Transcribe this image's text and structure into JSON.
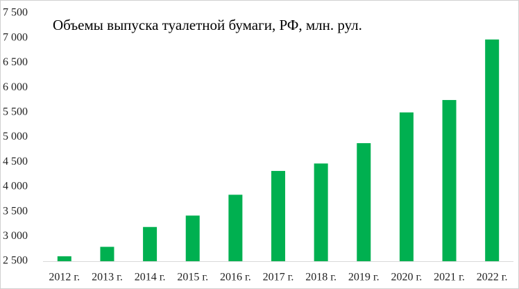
{
  "chart_data": {
    "type": "bar",
    "title": "Объемы выпуска туалетной бумаги, РФ, млн. рул.",
    "categories": [
      "2012 г.",
      "2013 г.",
      "2014 г.",
      "2015 г.",
      "2016 г.",
      "2017 г.",
      "2018 г.",
      "2019 г.",
      "2020 г.",
      "2021 г.",
      "2022 г."
    ],
    "values": [
      2600,
      2790,
      3190,
      3420,
      3840,
      4320,
      4470,
      4880,
      5500,
      5750,
      6970
    ],
    "color": "#00b050",
    "ylim": [
      2500,
      7500
    ],
    "yticks": [
      {
        "value": 2500,
        "label": "2 500"
      },
      {
        "value": 3000,
        "label": "3 000"
      },
      {
        "value": 3500,
        "label": "3 500"
      },
      {
        "value": 4000,
        "label": "4 000"
      },
      {
        "value": 4500,
        "label": "4 500"
      },
      {
        "value": 5000,
        "label": "5 000"
      },
      {
        "value": 5500,
        "label": "5 500"
      },
      {
        "value": 6000,
        "label": "6 000"
      },
      {
        "value": 6500,
        "label": "6 500"
      },
      {
        "value": 7000,
        "label": "7 000"
      },
      {
        "value": 7500,
        "label": "7 500"
      }
    ],
    "grid": false
  }
}
